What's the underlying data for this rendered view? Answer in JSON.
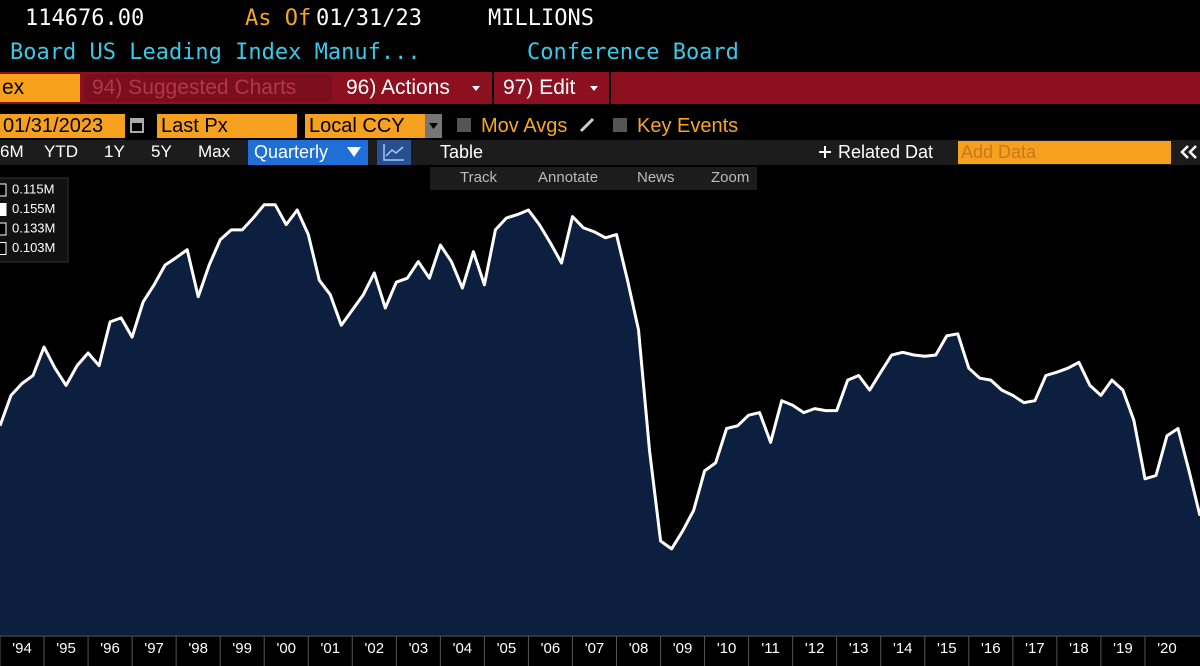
{
  "header": {
    "price": "114676.00",
    "as_of_label": "As Of",
    "as_of_date": "01/31/23",
    "units": "MILLIONS",
    "security": "Board US Leading Index Manuf...",
    "source": "Conference Board"
  },
  "menu": {
    "ticker_input": "ex",
    "suggested": "94) Suggested Charts",
    "actions": "96) Actions",
    "edit": "97) Edit"
  },
  "settings": {
    "date": "01/31/2023",
    "field": "Last Px",
    "currency": "Local CCY",
    "mov_avgs": "Mov Avgs",
    "key_events": "Key Events"
  },
  "range_bar": {
    "ranges": [
      "6M",
      "YTD",
      "1Y",
      "5Y",
      "Max"
    ],
    "frequency": "Quarterly",
    "table": "Table",
    "related": "Related Dat",
    "add_data": "Add Data"
  },
  "tools": [
    "Track",
    "Annotate",
    "News",
    "Zoom"
  ],
  "chart_data": {
    "type": "area",
    "legend_values": [
      "0.115M",
      "0.155M",
      "0.133M",
      "0.103M"
    ],
    "categories": [
      null,
      null,
      "'94",
      null,
      null,
      null,
      "'95",
      null,
      null,
      null,
      "'96",
      null,
      null,
      null,
      "'97",
      null,
      null,
      null,
      "'98",
      null,
      null,
      null,
      "'99",
      null,
      null,
      null,
      "'00",
      null,
      null,
      null,
      "'01",
      null,
      null,
      null,
      "'02",
      null,
      null,
      null,
      "'03",
      null,
      null,
      null,
      "'04",
      null,
      null,
      null,
      "'05",
      null,
      null,
      null,
      "'06",
      null,
      null,
      null,
      "'07",
      null,
      null,
      null,
      "'08",
      null,
      null,
      null,
      "'09",
      null,
      null,
      null,
      "'10",
      null,
      null,
      null,
      "'11",
      null,
      null,
      null,
      "'12",
      null,
      null,
      null,
      "'13",
      null,
      null,
      null,
      "'14",
      null,
      null,
      null,
      "'15",
      null,
      null,
      null,
      "'16",
      null,
      null,
      null,
      "'17",
      null,
      null,
      null,
      "'18",
      null,
      null,
      null,
      "'19",
      null,
      null,
      null,
      "'20",
      null,
      null,
      null
    ],
    "values": [
      0.1216,
      0.1262,
      0.128,
      0.1292,
      0.1335,
      0.1303,
      0.1277,
      0.1307,
      0.1326,
      0.1307,
      0.1373,
      0.1379,
      0.135,
      0.1403,
      0.1429,
      0.1459,
      0.147,
      0.1482,
      0.1411,
      0.1459,
      0.1497,
      0.1512,
      0.1512,
      0.153,
      0.155,
      0.155,
      0.152,
      0.1542,
      0.1505,
      0.1436,
      0.1414,
      0.1368,
      0.1391,
      0.1414,
      0.1447,
      0.1394,
      0.1433,
      0.1439,
      0.1464,
      0.1439,
      0.1489,
      0.1464,
      0.1424,
      0.1479,
      0.1429,
      0.1512,
      0.153,
      0.1535,
      0.1542,
      0.152,
      0.1492,
      0.1462,
      0.1532,
      0.1515,
      0.1509,
      0.15,
      0.1505,
      0.1436,
      0.1361,
      0.1179,
      0.1042,
      0.103,
      0.1057,
      0.1088,
      0.1148,
      0.116,
      0.1212,
      0.1216,
      0.1232,
      0.1236,
      0.1191,
      0.1254,
      0.1247,
      0.1236,
      0.1242,
      0.1239,
      0.1239,
      0.1285,
      0.1292,
      0.127,
      0.1297,
      0.1323,
      0.1327,
      0.1323,
      0.1321,
      0.1323,
      0.1352,
      0.1355,
      0.1303,
      0.1288,
      0.1285,
      0.127,
      0.1262,
      0.1251,
      0.1254,
      0.1292,
      0.1297,
      0.1303,
      0.1312,
      0.1277,
      0.1262,
      0.1285,
      0.127,
      0.1224,
      0.1136,
      0.1141,
      0.1201,
      0.1212,
      0.1148,
      0.108
    ],
    "line_color": "#ffffff",
    "fill_color": "#0c1f3f",
    "ylim": [
      0.09,
      0.161
    ]
  }
}
